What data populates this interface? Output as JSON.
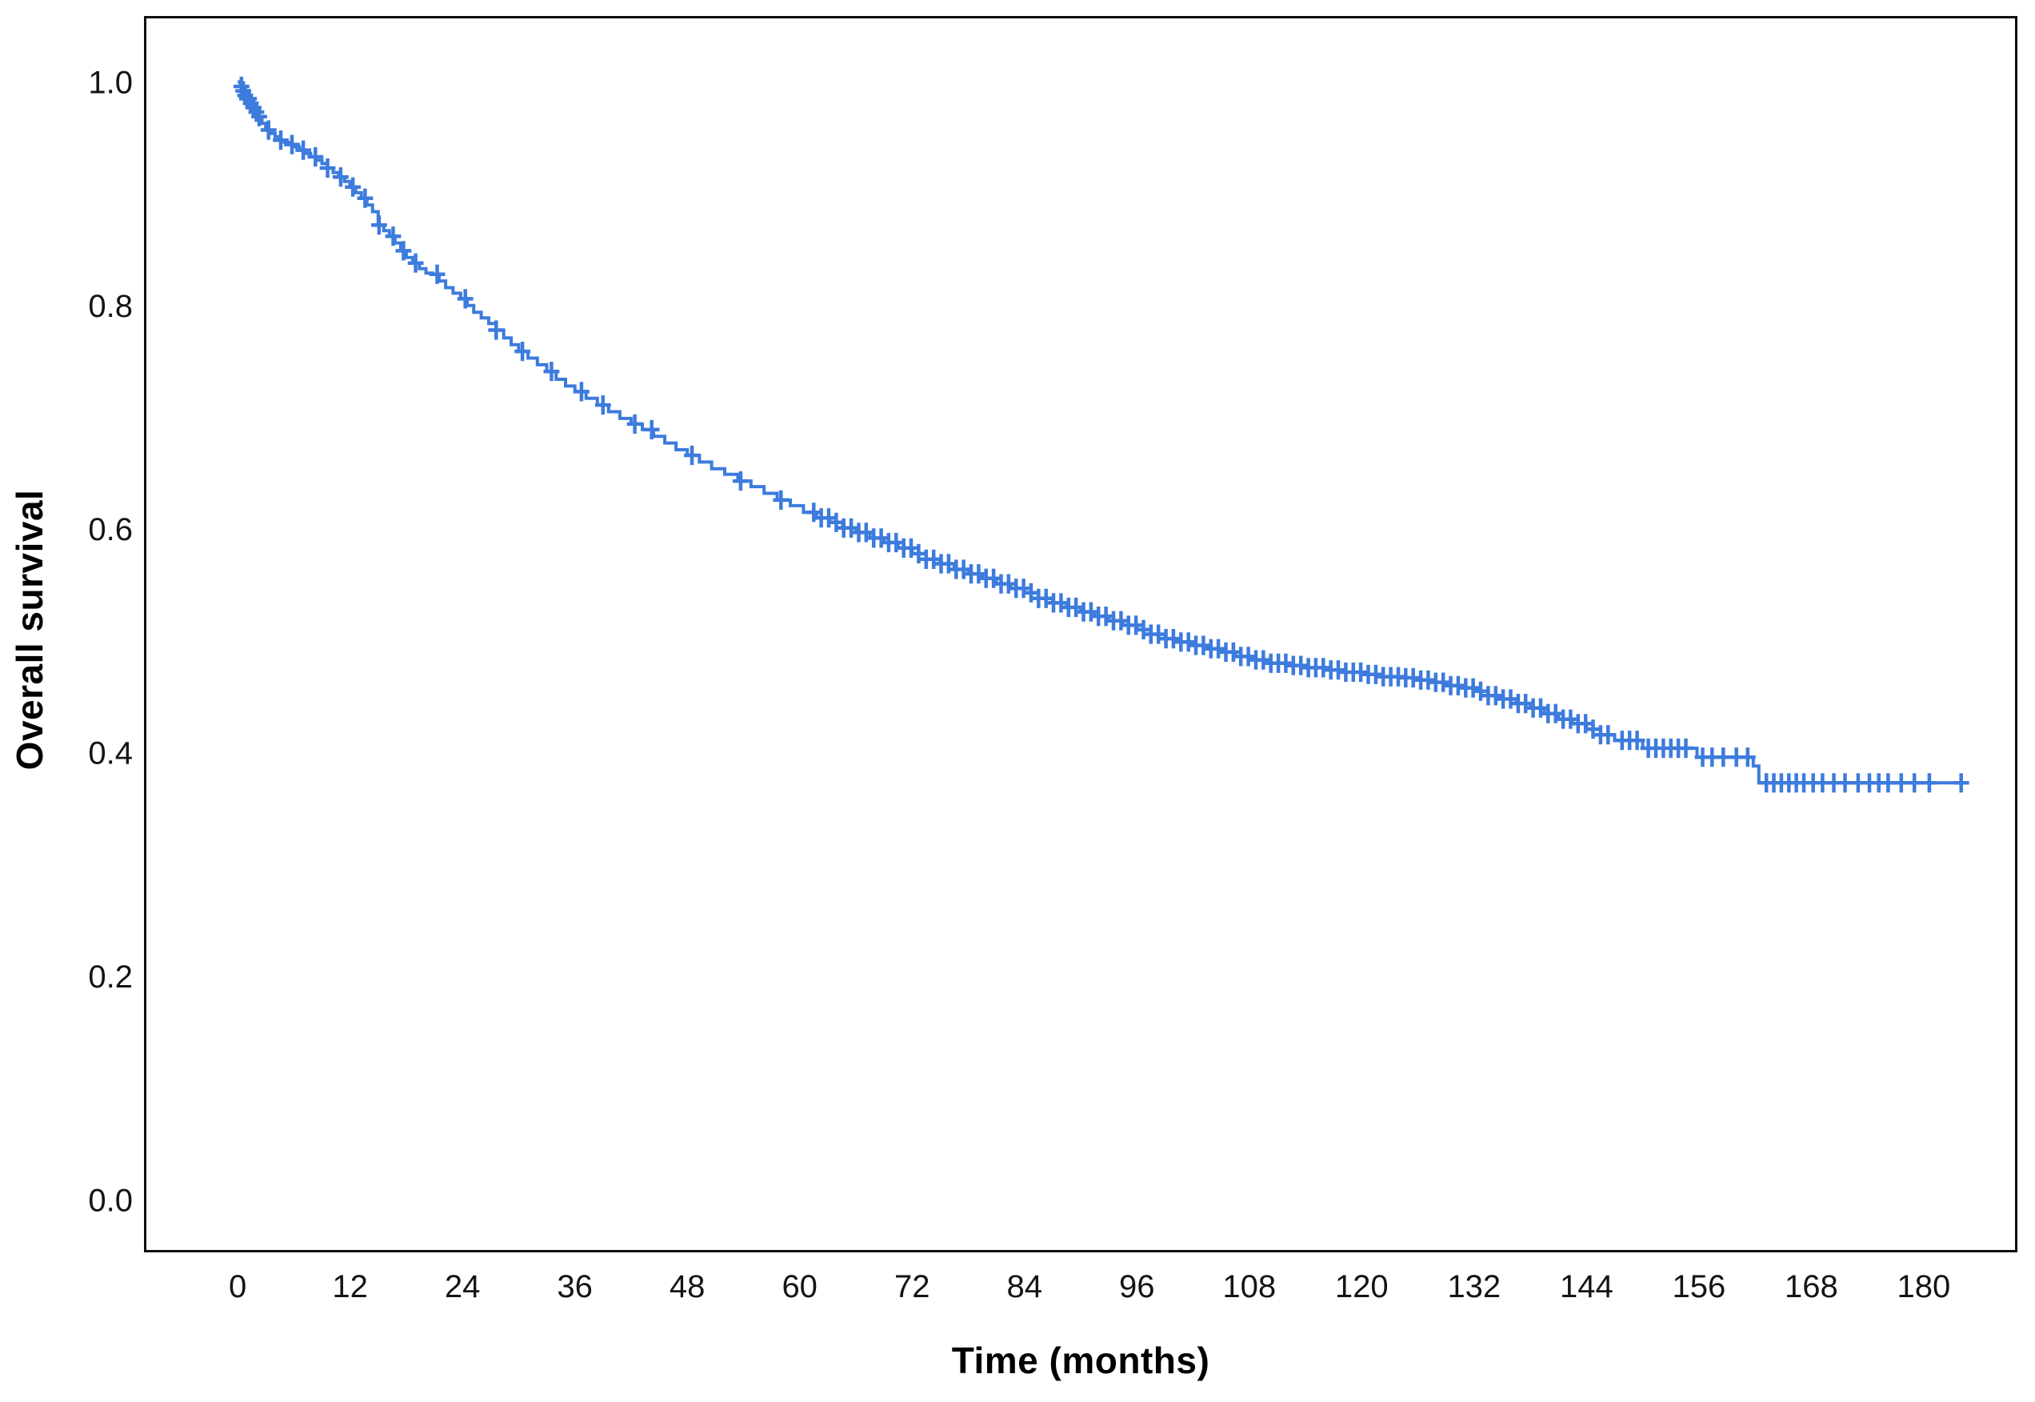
{
  "figure": {
    "background": "#ffffff",
    "frame_color": "#0d0d0d",
    "text_color": "#141414"
  },
  "chart_data": {
    "type": "line",
    "subtype": "kaplan_meier_step_with_censor_marks",
    "title": "",
    "xlabel": "Time (months)",
    "ylabel": "Overall survival",
    "grid": false,
    "legend_position": null,
    "xlim": [
      -10,
      190
    ],
    "ylim": [
      -0.047,
      1.059
    ],
    "x_tick_labels": [
      "0",
      "12",
      "24",
      "36",
      "48",
      "60",
      "72",
      "84",
      "96",
      "108",
      "120",
      "132",
      "144",
      "156",
      "168",
      "180"
    ],
    "x_tick_values": [
      0,
      12,
      24,
      36,
      48,
      60,
      72,
      84,
      96,
      108,
      120,
      132,
      144,
      156,
      168,
      180
    ],
    "y_tick_labels": [
      "1.0",
      "0.8",
      "0.6",
      "0.4",
      "0.2",
      "0.0"
    ],
    "y_tick_values": [
      1.0,
      0.8,
      0.6,
      0.4,
      0.2,
      0.0
    ],
    "series": [
      {
        "name": "Overall survival",
        "color": "#3D7BDD",
        "line_width": 4,
        "marker": "plus-censor",
        "censor_size": 22,
        "steps": [
          [
            0,
            1.0
          ],
          [
            0.3,
            0.996
          ],
          [
            0.5,
            0.992
          ],
          [
            0.8,
            0.988
          ],
          [
            1.0,
            0.985
          ],
          [
            1.3,
            0.981
          ],
          [
            1.6,
            0.977
          ],
          [
            1.9,
            0.973
          ],
          [
            2.2,
            0.969
          ],
          [
            2.6,
            0.963
          ],
          [
            3.0,
            0.957
          ],
          [
            3.5,
            0.954
          ],
          [
            4.0,
            0.951
          ],
          [
            4.5,
            0.948
          ],
          [
            5.0,
            0.946
          ],
          [
            5.5,
            0.944
          ],
          [
            6.0,
            0.942
          ],
          [
            6.6,
            0.939
          ],
          [
            7.2,
            0.936
          ],
          [
            7.8,
            0.933
          ],
          [
            8.4,
            0.93
          ],
          [
            9.0,
            0.927
          ],
          [
            9.6,
            0.923
          ],
          [
            10.2,
            0.919
          ],
          [
            10.8,
            0.915
          ],
          [
            11.4,
            0.911
          ],
          [
            12.0,
            0.906
          ],
          [
            12.6,
            0.901
          ],
          [
            13.2,
            0.896
          ],
          [
            13.8,
            0.89
          ],
          [
            14.4,
            0.884
          ],
          [
            15.0,
            0.872
          ],
          [
            15.6,
            0.867
          ],
          [
            16.2,
            0.862
          ],
          [
            16.8,
            0.856
          ],
          [
            17.4,
            0.849
          ],
          [
            18.0,
            0.843
          ],
          [
            18.7,
            0.838
          ],
          [
            19.4,
            0.833
          ],
          [
            20.1,
            0.829
          ],
          [
            20.8,
            0.828
          ],
          [
            21.5,
            0.822
          ],
          [
            22.2,
            0.816
          ],
          [
            23.0,
            0.811
          ],
          [
            23.8,
            0.806
          ],
          [
            24.5,
            0.8
          ],
          [
            25.2,
            0.794
          ],
          [
            26.0,
            0.789
          ],
          [
            26.8,
            0.784
          ],
          [
            27.6,
            0.778
          ],
          [
            28.4,
            0.771
          ],
          [
            29.2,
            0.765
          ],
          [
            30.0,
            0.759
          ],
          [
            31.0,
            0.753
          ],
          [
            32.0,
            0.747
          ],
          [
            33.0,
            0.741
          ],
          [
            34.0,
            0.734
          ],
          [
            35.0,
            0.728
          ],
          [
            36.0,
            0.723
          ],
          [
            37.2,
            0.717
          ],
          [
            38.4,
            0.711
          ],
          [
            39.6,
            0.705
          ],
          [
            40.8,
            0.699
          ],
          [
            42.0,
            0.694
          ],
          [
            43.2,
            0.689
          ],
          [
            44.4,
            0.683
          ],
          [
            45.6,
            0.677
          ],
          [
            46.8,
            0.671
          ],
          [
            48.0,
            0.666
          ],
          [
            49.3,
            0.66
          ],
          [
            50.6,
            0.654
          ],
          [
            52.0,
            0.649
          ],
          [
            53.4,
            0.643
          ],
          [
            54.8,
            0.638
          ],
          [
            56.2,
            0.632
          ],
          [
            57.6,
            0.626
          ],
          [
            59.0,
            0.621
          ],
          [
            60.4,
            0.615
          ],
          [
            61.8,
            0.61
          ],
          [
            63.2,
            0.606
          ],
          [
            64.6,
            0.601
          ],
          [
            66.0,
            0.597
          ],
          [
            67.5,
            0.592
          ],
          [
            69.0,
            0.588
          ],
          [
            70.5,
            0.583
          ],
          [
            72.0,
            0.578
          ],
          [
            73.5,
            0.573
          ],
          [
            75.0,
            0.569
          ],
          [
            76.5,
            0.564
          ],
          [
            78.0,
            0.56
          ],
          [
            79.5,
            0.556
          ],
          [
            81.0,
            0.551
          ],
          [
            82.5,
            0.547
          ],
          [
            84.0,
            0.543
          ],
          [
            85.5,
            0.538
          ],
          [
            87.0,
            0.534
          ],
          [
            88.5,
            0.53
          ],
          [
            90.0,
            0.526
          ],
          [
            91.5,
            0.522
          ],
          [
            93.0,
            0.518
          ],
          [
            94.5,
            0.514
          ],
          [
            96.0,
            0.51
          ],
          [
            97.5,
            0.506
          ],
          [
            99.0,
            0.502
          ],
          [
            100.5,
            0.499
          ],
          [
            102.0,
            0.496
          ],
          [
            103.5,
            0.493
          ],
          [
            105.0,
            0.49
          ],
          [
            106.5,
            0.486
          ],
          [
            108.0,
            0.483
          ],
          [
            110.0,
            0.48
          ],
          [
            112.0,
            0.478
          ],
          [
            114.0,
            0.476
          ],
          [
            116.0,
            0.474
          ],
          [
            118.0,
            0.472
          ],
          [
            120.0,
            0.47
          ],
          [
            122.0,
            0.468
          ],
          [
            124.0,
            0.467
          ],
          [
            126.0,
            0.465
          ],
          [
            127.5,
            0.463
          ],
          [
            129.0,
            0.46
          ],
          [
            130.5,
            0.458
          ],
          [
            132.0,
            0.455
          ],
          [
            133.5,
            0.451
          ],
          [
            135.0,
            0.448
          ],
          [
            136.5,
            0.444
          ],
          [
            138.0,
            0.44
          ],
          [
            139.5,
            0.435
          ],
          [
            141.0,
            0.43
          ],
          [
            142.5,
            0.426
          ],
          [
            144.0,
            0.421
          ],
          [
            145.5,
            0.416
          ],
          [
            147.0,
            0.411
          ],
          [
            150.0,
            0.404
          ],
          [
            155.8,
            0.396
          ],
          [
            161.8,
            0.388
          ],
          [
            162.4,
            0.373
          ],
          [
            184.5,
            0.373
          ]
        ],
        "censor_times": [
          0.4,
          0.6,
          0.8,
          1.0,
          1.2,
          1.4,
          1.7,
          2.0,
          2.3,
          3.3,
          4.6,
          5.8,
          7.0,
          8.3,
          9.6,
          11.0,
          12.3,
          13.6,
          15.1,
          16.6,
          17.7,
          19.0,
          21.3,
          24.3,
          27.6,
          30.4,
          33.5,
          36.7,
          39.0,
          42.4,
          44.2,
          48.5,
          53.7,
          58.0,
          61.5,
          62.3,
          63.1,
          63.9,
          64.7,
          65.5,
          66.3,
          67.1,
          67.9,
          68.7,
          69.5,
          70.3,
          71.1,
          71.9,
          72.7,
          73.5,
          74.3,
          75.1,
          75.9,
          76.7,
          77.5,
          78.3,
          79.1,
          79.9,
          80.7,
          81.5,
          82.3,
          83.1,
          83.9,
          84.7,
          85.5,
          86.3,
          87.1,
          87.9,
          88.7,
          89.5,
          90.3,
          91.1,
          91.9,
          92.7,
          93.5,
          94.3,
          95.1,
          95.9,
          96.7,
          97.5,
          98.3,
          99.1,
          99.9,
          100.7,
          101.5,
          102.3,
          103.1,
          103.9,
          104.7,
          105.5,
          106.3,
          107.1,
          107.9,
          108.7,
          109.5,
          110.3,
          111.1,
          111.9,
          112.7,
          113.5,
          114.3,
          115.1,
          115.9,
          116.7,
          117.5,
          118.3,
          119.1,
          119.9,
          120.7,
          121.5,
          122.3,
          123.1,
          123.9,
          124.7,
          125.5,
          126.3,
          127.1,
          127.9,
          128.7,
          129.5,
          130.3,
          131.1,
          131.9,
          132.7,
          133.5,
          134.3,
          135.1,
          135.9,
          136.7,
          137.5,
          138.3,
          139.1,
          139.9,
          140.7,
          141.5,
          142.3,
          143.1,
          143.9,
          144.7,
          145.5,
          146.3,
          147.8,
          148.6,
          149.4,
          150.6,
          151.4,
          152.2,
          153.0,
          153.8,
          154.6,
          156.4,
          157.4,
          158.6,
          160.0,
          161.2,
          163.2,
          164.0,
          164.8,
          165.6,
          166.4,
          167.2,
          168.2,
          169.2,
          170.4,
          171.6,
          173.0,
          174.2,
          175.2,
          176.2,
          177.6,
          179.0,
          180.6,
          184.0
        ]
      }
    ]
  }
}
